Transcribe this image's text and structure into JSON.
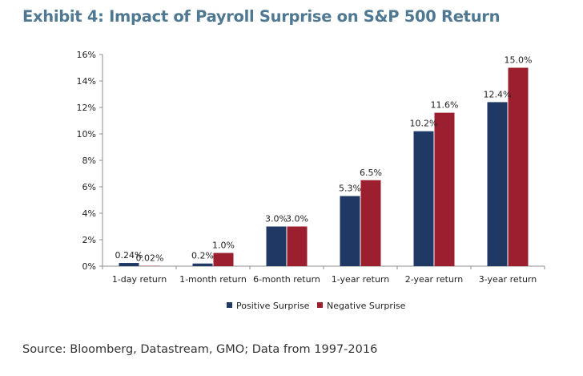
{
  "title": "Exhibit 4: Impact of Payroll Surprise on S&P 500 Return",
  "source": "Source:  Bloomberg, Datastream, GMO; Data from 1997-2016",
  "chart_data": {
    "type": "bar",
    "title": "Exhibit 4: Impact of Payroll Surprise on S&P 500 Return",
    "xlabel": "",
    "ylabel": "",
    "categories": [
      "1-day return",
      "1-month return",
      "6-month return",
      "1-year return",
      "2-year return",
      "3-year return"
    ],
    "series": [
      {
        "name": "Positive Surprise",
        "color": "#1f3864",
        "values": [
          0.24,
          0.2,
          3.0,
          5.3,
          10.2,
          12.4
        ],
        "labels": [
          "0.24%",
          "0.2%",
          "3.0%",
          "5.3%",
          "10.2%",
          "12.4%"
        ]
      },
      {
        "name": "Negative Surprise",
        "color": "#9b1f2e",
        "values": [
          0.02,
          1.0,
          3.0,
          6.5,
          11.6,
          15.0
        ],
        "labels": [
          "0.02%",
          "1.0%",
          "3.0%",
          "6.5%",
          "11.6%",
          "15.0%"
        ]
      }
    ],
    "ylim": [
      0,
      16
    ],
    "yticks": [
      0,
      2,
      4,
      6,
      8,
      10,
      12,
      14,
      16
    ],
    "ytick_labels": [
      "0%",
      "2%",
      "4%",
      "6%",
      "8%",
      "10%",
      "12%",
      "14%",
      "16%"
    ],
    "grid": false,
    "legend_position": "bottom-center"
  }
}
